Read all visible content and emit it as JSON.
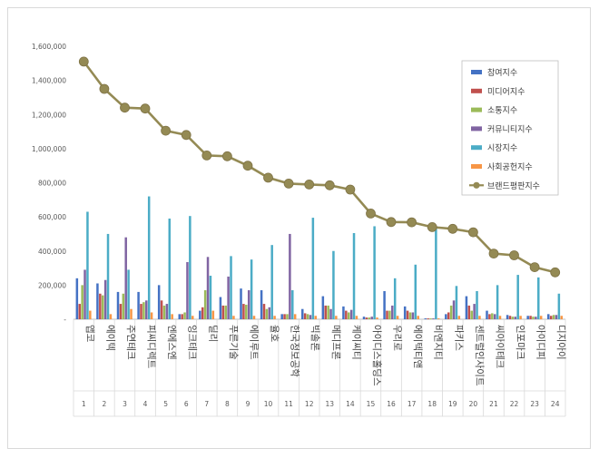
{
  "chart_data": {
    "type": "bar",
    "title": "",
    "xlabel": "",
    "ylabel": "",
    "ylim": [
      0,
      1600000
    ],
    "yticks": [
      0,
      200000,
      400000,
      600000,
      800000,
      1000000,
      1200000,
      1400000,
      1600000
    ],
    "ytick_labels": [
      "-",
      "200,000",
      "400,000",
      "600,000",
      "800,000",
      "1,000,000",
      "1,200,000",
      "1,400,000",
      "1,600,000"
    ],
    "categories": [
      "앱코",
      "에이텍",
      "주연테크",
      "피씨디렉트",
      "엔에스엔",
      "잉크테크",
      "딜리",
      "푸른기술",
      "에이루트",
      "율호",
      "한국정보공학",
      "빅솔론",
      "메디프론",
      "케이씨티",
      "아이디스홀딩스",
      "우리로",
      "에이텍티앤",
      "비엔지티",
      "파키스",
      "센트럴인사이트",
      "씨아이테크",
      "인포마크",
      "아이디피",
      "디지아이"
    ],
    "index_labels": [
      "1",
      "2",
      "3",
      "4",
      "5",
      "6",
      "7",
      "8",
      "9",
      "10",
      "11",
      "12",
      "13",
      "14",
      "15",
      "16",
      "17",
      "18",
      "19",
      "20",
      "21",
      "22",
      "23",
      "24"
    ],
    "legend_position": "top-right",
    "series": [
      {
        "name": "참여지수",
        "color": "#4472c4",
        "values": [
          240000,
          210000,
          160000,
          160000,
          200000,
          30000,
          50000,
          130000,
          180000,
          170000,
          30000,
          60000,
          135000,
          75000,
          15000,
          165000,
          75000,
          5000,
          30000,
          135000,
          50000,
          25000,
          20000,
          30000
        ]
      },
      {
        "name": "미디어지수",
        "color": "#c0504d",
        "values": [
          90000,
          150000,
          90000,
          90000,
          110000,
          30000,
          70000,
          80000,
          90000,
          90000,
          30000,
          35000,
          80000,
          50000,
          10000,
          50000,
          50000,
          5000,
          40000,
          80000,
          30000,
          20000,
          20000,
          20000
        ]
      },
      {
        "name": "소통지수",
        "color": "#9bbb59",
        "values": [
          200000,
          140000,
          150000,
          100000,
          80000,
          40000,
          170000,
          80000,
          85000,
          60000,
          30000,
          30000,
          80000,
          40000,
          10000,
          50000,
          40000,
          5000,
          80000,
          50000,
          35000,
          15000,
          15000,
          25000
        ]
      },
      {
        "name": "커뮤니티지수",
        "color": "#8064a2",
        "values": [
          290000,
          230000,
          480000,
          110000,
          90000,
          335000,
          365000,
          250000,
          170000,
          70000,
          500000,
          25000,
          60000,
          55000,
          15000,
          80000,
          40000,
          5000,
          110000,
          90000,
          30000,
          15000,
          15000,
          25000
        ]
      },
      {
        "name": "시장지수",
        "color": "#4bacc6",
        "values": [
          630000,
          500000,
          290000,
          720000,
          590000,
          605000,
          255000,
          370000,
          350000,
          435000,
          170000,
          595000,
          400000,
          505000,
          545000,
          240000,
          320000,
          530000,
          195000,
          165000,
          200000,
          260000,
          245000,
          150000
        ]
      },
      {
        "name": "사회공헌지수",
        "color": "#f79646",
        "values": [
          50000,
          30000,
          60000,
          40000,
          30000,
          20000,
          50000,
          20000,
          20000,
          20000,
          30000,
          20000,
          20000,
          20000,
          10000,
          20000,
          20000,
          5000,
          20000,
          20000,
          20000,
          20000,
          20000,
          20000
        ]
      }
    ],
    "line_series": {
      "name": "브랜드평판지수",
      "color": "#948a54",
      "values": [
        1510000,
        1350000,
        1240000,
        1235000,
        1105000,
        1080000,
        960000,
        955000,
        900000,
        830000,
        795000,
        790000,
        785000,
        760000,
        620000,
        570000,
        568000,
        540000,
        530000,
        510000,
        385000,
        375000,
        305000,
        275000
      ]
    }
  }
}
